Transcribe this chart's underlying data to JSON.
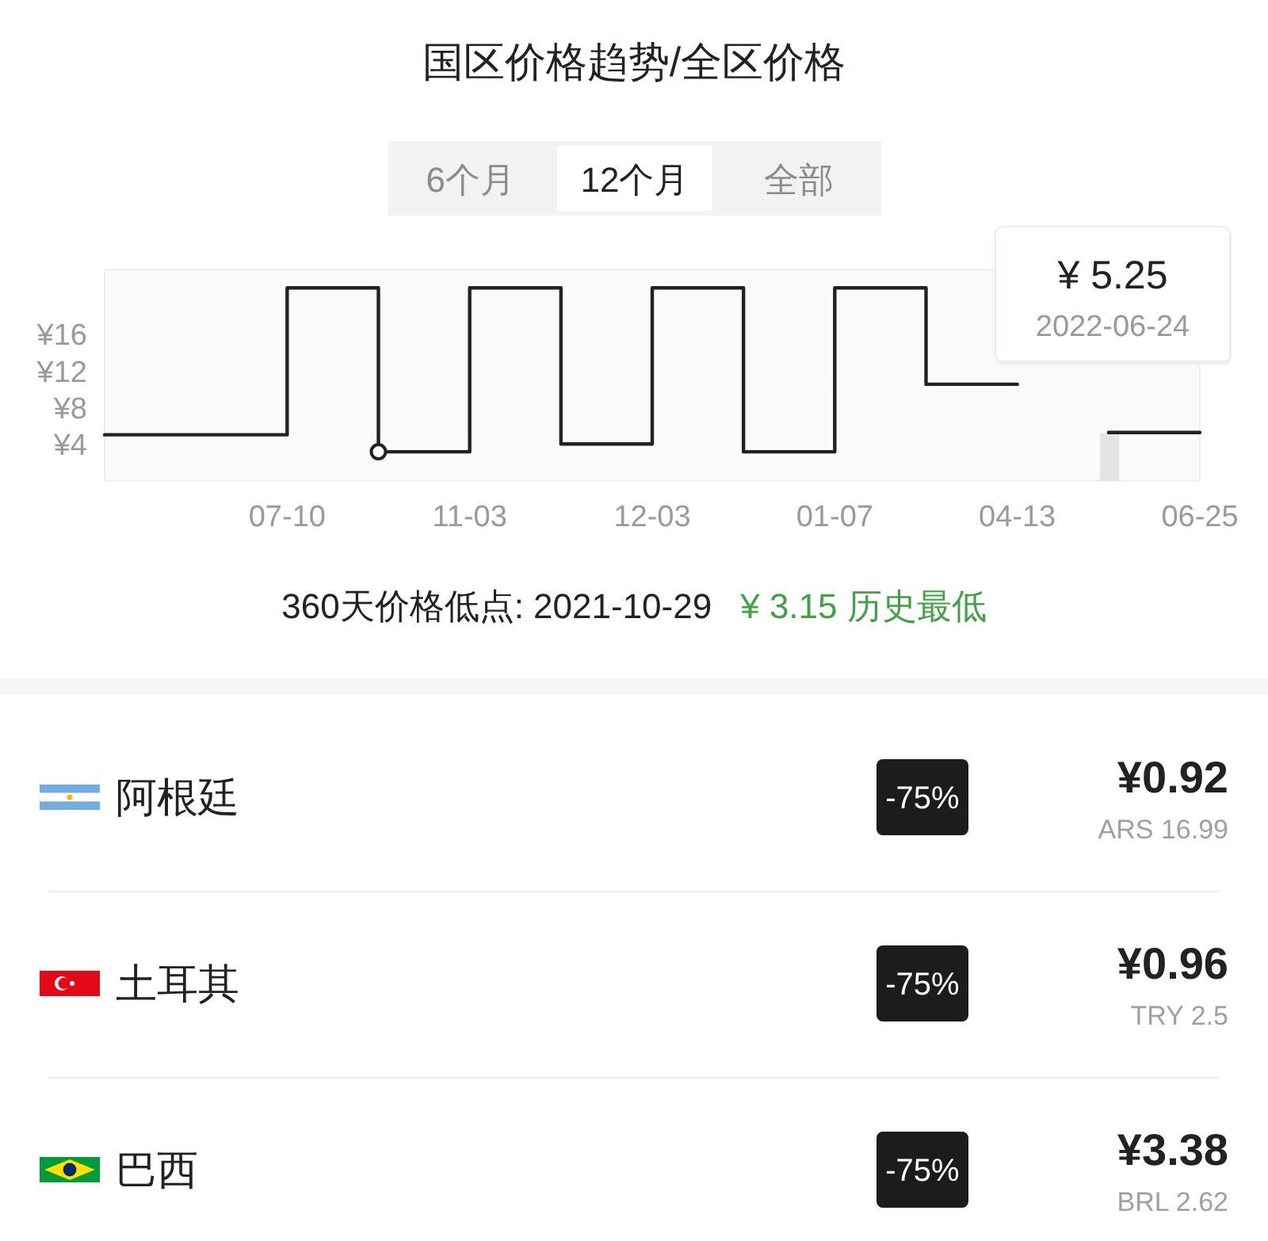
{
  "chart_data": [
    {
      "type": "step",
      "title": "国区价格趋势/全区价格",
      "categories": [
        null,
        null,
        "07-10",
        null,
        "11-03",
        null,
        "12-03",
        null,
        "01-07",
        null,
        "04-13",
        null,
        "06-25"
      ],
      "series": [
        {
          "color": "#222222",
          "values": [
            5,
            5,
            21,
            3.15,
            21,
            4,
            21,
            3.15,
            21,
            10.5,
            null,
            5.25,
            5.25
          ]
        },
        {
          "type": "scatter",
          "marker": "circle",
          "color": "#222222",
          "values": [
            null,
            null,
            null,
            3.15,
            null,
            null,
            null,
            null,
            null,
            null,
            null,
            null,
            null
          ]
        }
      ],
      "ylim": [
        0,
        23
      ],
      "yticks": [
        {
          "value": 4,
          "label": "¥4"
        },
        {
          "value": 8,
          "label": "¥8"
        },
        {
          "value": 12,
          "label": "¥12"
        },
        {
          "value": 16,
          "label": "¥16"
        }
      ],
      "grid": false,
      "marker": "none",
      "annotations": [
        "6个月",
        "12个月",
        "全部",
        "¥ 5.25",
        "2022-06-24",
        "360天价格低点: 2021-10-29",
        "¥ 3.15 历史最低"
      ]
    },
    {
      "type": "other",
      "annotations": [
        "阿根廷",
        "-75%",
        "¥0.92",
        "ARS 16.99",
        "土耳其",
        "-75%",
        "¥0.96",
        "TRY 2.5",
        "巴西",
        "-75%",
        "¥3.38",
        "BRL 2.62"
      ]
    }
  ]
}
